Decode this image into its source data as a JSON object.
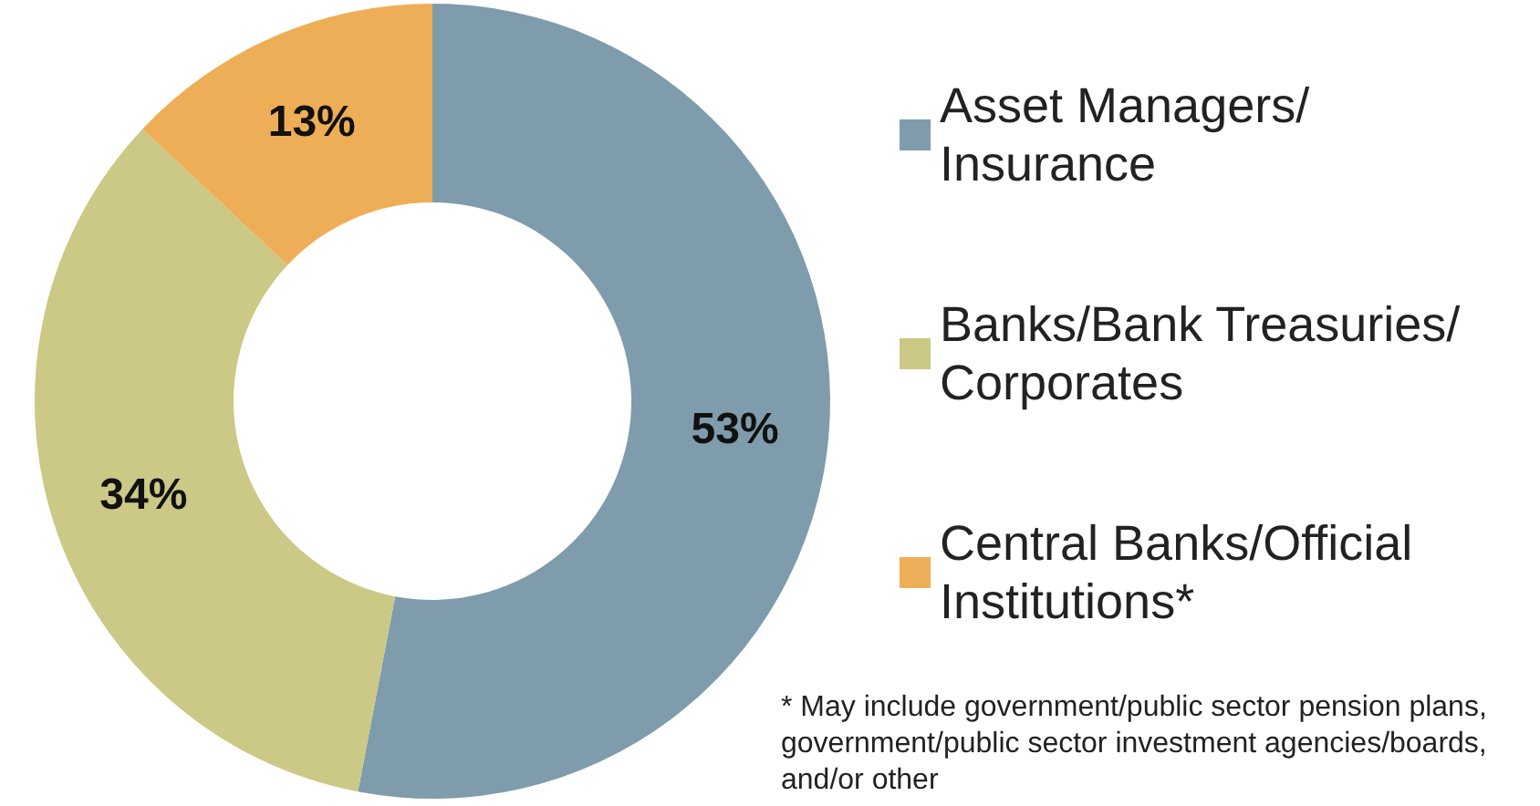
{
  "chart_data": {
    "type": "donut",
    "categories": [
      "Asset Managers/Insurance",
      "Banks/Bank Treasuries/Corporates",
      "Central Banks/Official Institutions*"
    ],
    "values": [
      53,
      34,
      13
    ],
    "colors": [
      "#7f9cac",
      "#ccc886",
      "#eeae57"
    ],
    "value_labels": [
      "53%",
      "34%",
      "13%"
    ],
    "legend": "right",
    "annotations": [
      "* May include government/public sector pension plans, government/public sector investment agencies/boards, and/or other"
    ]
  }
}
